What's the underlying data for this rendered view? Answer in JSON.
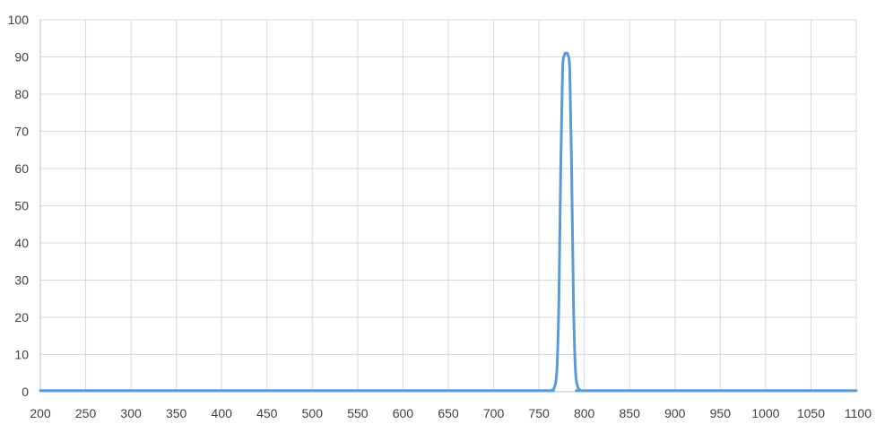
{
  "chart_data": {
    "type": "line",
    "title": "",
    "xlabel": "",
    "ylabel": "",
    "xlim": [
      200,
      1100
    ],
    "ylim": [
      0,
      100
    ],
    "x_ticks": [
      200,
      250,
      300,
      350,
      400,
      450,
      500,
      550,
      600,
      650,
      700,
      750,
      800,
      850,
      900,
      950,
      1000,
      1050,
      1100
    ],
    "y_ticks": [
      0,
      10,
      20,
      30,
      40,
      50,
      60,
      70,
      80,
      90,
      100
    ],
    "grid": true,
    "legend": "none",
    "line_color": "#5b9bd5",
    "series": [
      {
        "x": [
          200,
          300,
          400,
          500,
          600,
          700,
          760,
          765,
          768,
          770,
          772,
          774,
          776,
          778,
          780,
          782,
          784,
          786,
          788,
          790,
          792,
          795,
          800,
          900,
          1000,
          1100
        ],
        "values": [
          0.3,
          0.3,
          0.3,
          0.3,
          0.3,
          0.3,
          0.3,
          0.5,
          2,
          7,
          25,
          60,
          86,
          90.5,
          91,
          90.5,
          86,
          60,
          25,
          7,
          2,
          0.5,
          0.3,
          0.3,
          0.3,
          0.3
        ]
      }
    ]
  }
}
